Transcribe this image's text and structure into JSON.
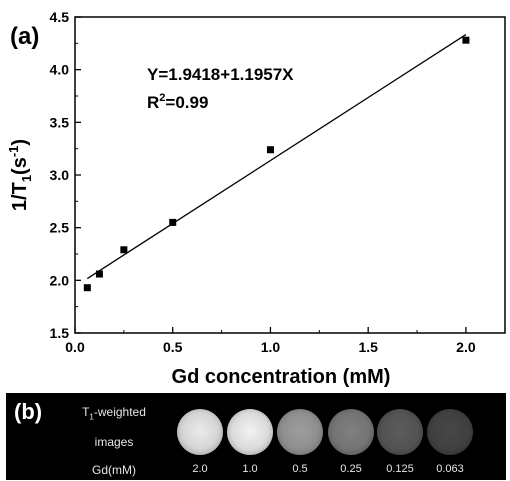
{
  "panel_a_label": "(a)",
  "panel_b_label": "(b)",
  "chart_data": {
    "type": "scatter",
    "xlabel": "Gd concentration (mM)",
    "ylabel": "1/T1(s-1)",
    "ylabel_parts": {
      "main": "1/T",
      "sub": "1",
      "paren_open": "(s",
      "sup": "-1",
      "paren_close": ")"
    },
    "xlim": [
      0,
      2.2
    ],
    "ylim": [
      1.5,
      4.5
    ],
    "xticks": [
      0.0,
      0.5,
      1.0,
      1.5,
      2.0
    ],
    "xtick_labels": [
      "0.0",
      "0.5",
      "1.0",
      "1.5",
      "2.0"
    ],
    "yticks": [
      1.5,
      2.0,
      2.5,
      3.0,
      3.5,
      4.0,
      4.5
    ],
    "ytick_labels": [
      "1.5",
      "2.0",
      "2.5",
      "3.0",
      "3.5",
      "4.0",
      "4.5"
    ],
    "grid": false,
    "points": {
      "x": [
        0.063,
        0.125,
        0.25,
        0.5,
        1.0,
        2.0
      ],
      "y": [
        1.93,
        2.06,
        2.29,
        2.55,
        3.24,
        4.28
      ]
    },
    "fit": {
      "intercept": 1.9418,
      "slope": 1.1957,
      "x_range": [
        0.063,
        2.0
      ]
    },
    "annotations": {
      "equation": "Y=1.9418+1.1957X",
      "r2_prefix": "R",
      "r2_sup": "2",
      "r2_value": "=0.99"
    }
  },
  "panel_b": {
    "row1_label_main": "T",
    "row1_label_sub": "1",
    "row1_label_rest": "-weighted",
    "row2_label": "images",
    "row3_label": "Gd(mM)",
    "concentrations": [
      "2.0",
      "1.0",
      "0.5",
      "0.25",
      "0.125",
      "0.063"
    ],
    "brightness": [
      0.92,
      0.95,
      0.62,
      0.5,
      0.36,
      0.28
    ]
  }
}
